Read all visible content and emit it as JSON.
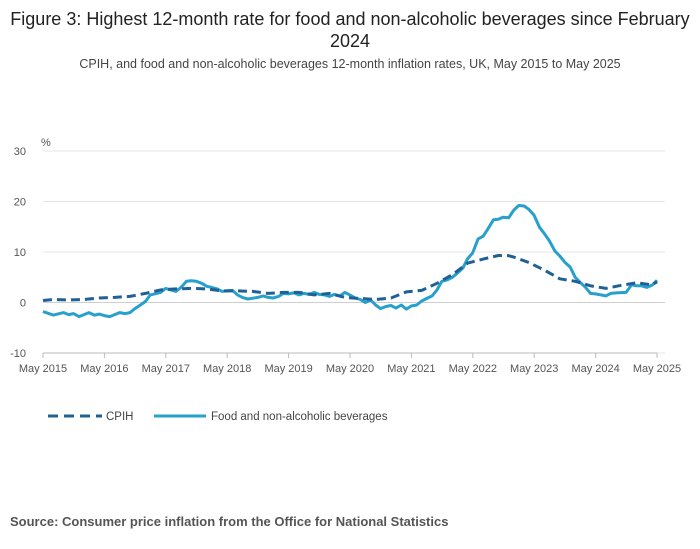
{
  "title": "Figure 3: Highest 12-month rate for food and non-alcoholic beverages since February 2024",
  "subtitle": "CPIH, and food and non-alcoholic beverages 12-month inflation rates, UK, May 2015 to May 2025",
  "source": "Source: Consumer price inflation from the Office for National Statistics",
  "colors": {
    "cpih": "#206095",
    "food": "#27a0cc",
    "grid": "#e4e4e4",
    "axis": "#bbbbbb"
  },
  "chart_data": {
    "type": "line",
    "ylabel": "%",
    "ylim": [
      -10,
      30
    ],
    "yticks": [
      30,
      20,
      10,
      0,
      -10
    ],
    "xlim": [
      2015.333,
      2025.333
    ],
    "xticks": [
      {
        "x": 2015.333,
        "label": "May 2015"
      },
      {
        "x": 2016.333,
        "label": "May 2016"
      },
      {
        "x": 2017.333,
        "label": "May 2017"
      },
      {
        "x": 2018.333,
        "label": "May 2018"
      },
      {
        "x": 2019.333,
        "label": "May 2019"
      },
      {
        "x": 2020.333,
        "label": "May 2020"
      },
      {
        "x": 2021.333,
        "label": "May 2021"
      },
      {
        "x": 2022.333,
        "label": "May 2022"
      },
      {
        "x": 2023.333,
        "label": "May 2023"
      },
      {
        "x": 2024.333,
        "label": "May 2024"
      },
      {
        "x": 2025.333,
        "label": "May 2025"
      }
    ],
    "series": [
      {
        "name": "CPIH",
        "style": "dashed",
        "points": [
          [
            2015.333,
            0.4
          ],
          [
            2015.5,
            0.6
          ],
          [
            2015.75,
            0.5
          ],
          [
            2016.0,
            0.6
          ],
          [
            2016.25,
            0.9
          ],
          [
            2016.5,
            1.0
          ],
          [
            2016.75,
            1.2
          ],
          [
            2017.0,
            1.8
          ],
          [
            2017.25,
            2.5
          ],
          [
            2017.5,
            2.7
          ],
          [
            2017.75,
            2.8
          ],
          [
            2018.0,
            2.7
          ],
          [
            2018.25,
            2.3
          ],
          [
            2018.5,
            2.3
          ],
          [
            2018.75,
            2.2
          ],
          [
            2019.0,
            1.8
          ],
          [
            2019.25,
            2.0
          ],
          [
            2019.5,
            2.0
          ],
          [
            2019.75,
            1.5
          ],
          [
            2020.0,
            1.8
          ],
          [
            2020.25,
            1.0
          ],
          [
            2020.5,
            0.8
          ],
          [
            2020.75,
            0.6
          ],
          [
            2021.0,
            0.9
          ],
          [
            2021.25,
            2.1
          ],
          [
            2021.5,
            2.4
          ],
          [
            2021.75,
            3.8
          ],
          [
            2022.0,
            5.5
          ],
          [
            2022.25,
            7.8
          ],
          [
            2022.5,
            8.6
          ],
          [
            2022.75,
            9.3
          ],
          [
            2022.9,
            9.3
          ],
          [
            2023.0,
            9.0
          ],
          [
            2023.25,
            7.9
          ],
          [
            2023.5,
            6.4
          ],
          [
            2023.75,
            4.7
          ],
          [
            2024.0,
            4.2
          ],
          [
            2024.25,
            3.3
          ],
          [
            2024.5,
            2.8
          ],
          [
            2024.75,
            3.4
          ],
          [
            2025.0,
            3.9
          ],
          [
            2025.25,
            3.5
          ],
          [
            2025.333,
            4.1
          ]
        ]
      },
      {
        "name": "Food and non-alcoholic beverages",
        "style": "solid",
        "points": [
          [
            2015.333,
            -1.8
          ],
          [
            2015.5,
            -2.5
          ],
          [
            2015.67,
            -2.0
          ],
          [
            2015.75,
            -2.4
          ],
          [
            2015.83,
            -2.2
          ],
          [
            2015.92,
            -2.8
          ],
          [
            2016.0,
            -2.4
          ],
          [
            2016.08,
            -2.0
          ],
          [
            2016.17,
            -2.5
          ],
          [
            2016.25,
            -2.3
          ],
          [
            2016.33,
            -2.6
          ],
          [
            2016.42,
            -2.8
          ],
          [
            2016.5,
            -2.4
          ],
          [
            2016.58,
            -2.0
          ],
          [
            2016.67,
            -2.2
          ],
          [
            2016.75,
            -2.0
          ],
          [
            2016.83,
            -1.2
          ],
          [
            2016.92,
            -0.5
          ],
          [
            2017.0,
            0.2
          ],
          [
            2017.08,
            1.5
          ],
          [
            2017.25,
            2.0
          ],
          [
            2017.33,
            2.8
          ],
          [
            2017.5,
            2.2
          ],
          [
            2017.58,
            3.0
          ],
          [
            2017.67,
            4.2
          ],
          [
            2017.75,
            4.3
          ],
          [
            2017.83,
            4.2
          ],
          [
            2017.92,
            3.8
          ],
          [
            2018.0,
            3.2
          ],
          [
            2018.08,
            3.0
          ],
          [
            2018.17,
            2.7
          ],
          [
            2018.25,
            2.2
          ],
          [
            2018.33,
            2.3
          ],
          [
            2018.42,
            2.4
          ],
          [
            2018.5,
            1.5
          ],
          [
            2018.58,
            1.0
          ],
          [
            2018.67,
            0.7
          ],
          [
            2018.83,
            1.0
          ],
          [
            2018.92,
            1.3
          ],
          [
            2019.0,
            1.0
          ],
          [
            2019.08,
            0.9
          ],
          [
            2019.17,
            1.2
          ],
          [
            2019.25,
            1.8
          ],
          [
            2019.33,
            1.7
          ],
          [
            2019.42,
            1.9
          ],
          [
            2019.5,
            1.5
          ],
          [
            2019.58,
            1.8
          ],
          [
            2019.67,
            1.6
          ],
          [
            2019.75,
            2.0
          ],
          [
            2019.83,
            1.6
          ],
          [
            2019.92,
            1.5
          ],
          [
            2020.0,
            1.2
          ],
          [
            2020.08,
            1.6
          ],
          [
            2020.17,
            1.3
          ],
          [
            2020.25,
            2.0
          ],
          [
            2020.33,
            1.5
          ],
          [
            2020.42,
            0.9
          ],
          [
            2020.5,
            0.6
          ],
          [
            2020.58,
            0.0
          ],
          [
            2020.67,
            0.5
          ],
          [
            2020.75,
            -0.5
          ],
          [
            2020.83,
            -1.2
          ],
          [
            2020.92,
            -0.8
          ],
          [
            2021.0,
            -0.6
          ],
          [
            2021.08,
            -1.1
          ],
          [
            2021.17,
            -0.5
          ],
          [
            2021.25,
            -1.3
          ],
          [
            2021.33,
            -0.7
          ],
          [
            2021.42,
            -0.5
          ],
          [
            2021.5,
            0.3
          ],
          [
            2021.58,
            0.8
          ],
          [
            2021.67,
            1.3
          ],
          [
            2021.75,
            2.5
          ],
          [
            2021.83,
            4.2
          ],
          [
            2021.92,
            4.5
          ],
          [
            2022.0,
            5.0
          ],
          [
            2022.08,
            5.8
          ],
          [
            2022.17,
            6.8
          ],
          [
            2022.25,
            8.7
          ],
          [
            2022.33,
            9.8
          ],
          [
            2022.42,
            12.6
          ],
          [
            2022.5,
            13.1
          ],
          [
            2022.58,
            14.6
          ],
          [
            2022.67,
            16.4
          ],
          [
            2022.75,
            16.5
          ],
          [
            2022.83,
            16.9
          ],
          [
            2022.92,
            16.8
          ],
          [
            2023.0,
            18.3
          ],
          [
            2023.08,
            19.2
          ],
          [
            2023.17,
            19.1
          ],
          [
            2023.25,
            18.4
          ],
          [
            2023.33,
            17.3
          ],
          [
            2023.42,
            14.9
          ],
          [
            2023.5,
            13.6
          ],
          [
            2023.58,
            12.2
          ],
          [
            2023.67,
            10.2
          ],
          [
            2023.75,
            9.2
          ],
          [
            2023.83,
            8.0
          ],
          [
            2023.92,
            7.0
          ],
          [
            2024.0,
            5.0
          ],
          [
            2024.08,
            4.0
          ],
          [
            2024.17,
            3.0
          ],
          [
            2024.25,
            1.8
          ],
          [
            2024.33,
            1.7
          ],
          [
            2024.42,
            1.5
          ],
          [
            2024.5,
            1.3
          ],
          [
            2024.58,
            1.8
          ],
          [
            2024.67,
            1.9
          ],
          [
            2024.83,
            2.0
          ],
          [
            2024.92,
            3.5
          ],
          [
            2025.0,
            3.3
          ],
          [
            2025.08,
            3.3
          ],
          [
            2025.17,
            3.0
          ],
          [
            2025.25,
            3.4
          ],
          [
            2025.333,
            4.4
          ]
        ]
      }
    ]
  }
}
